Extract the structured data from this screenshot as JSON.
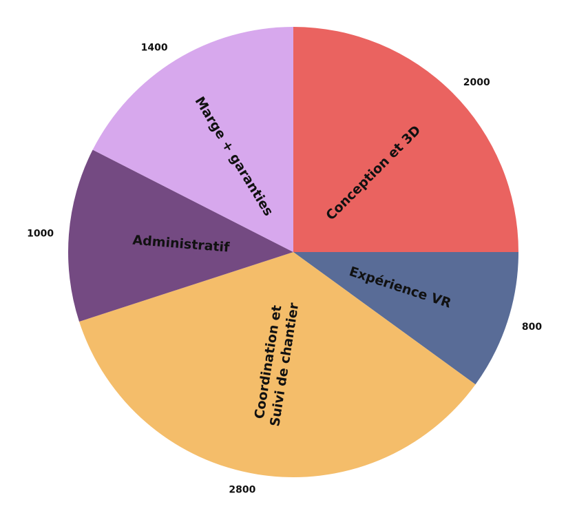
{
  "chart_data": {
    "type": "pie",
    "title": "",
    "start_angle_deg": 0,
    "direction": "clockwise",
    "slices": [
      {
        "label": "Conception et 3D",
        "value": 2000,
        "color": "#ea6360"
      },
      {
        "label": "Expérience VR",
        "value": 800,
        "color": "#596c97"
      },
      {
        "label": "Coordination et Suivi de chantier",
        "label_lines": [
          "Coordination et",
          "Suivi de chantier"
        ],
        "value": 2800,
        "color": "#f4bd6a"
      },
      {
        "label": "Administratif",
        "value": 1000,
        "color": "#744a82"
      },
      {
        "label": "Marge + garanties",
        "value": 1400,
        "color": "#d7a8ed"
      }
    ],
    "legend": "none"
  }
}
